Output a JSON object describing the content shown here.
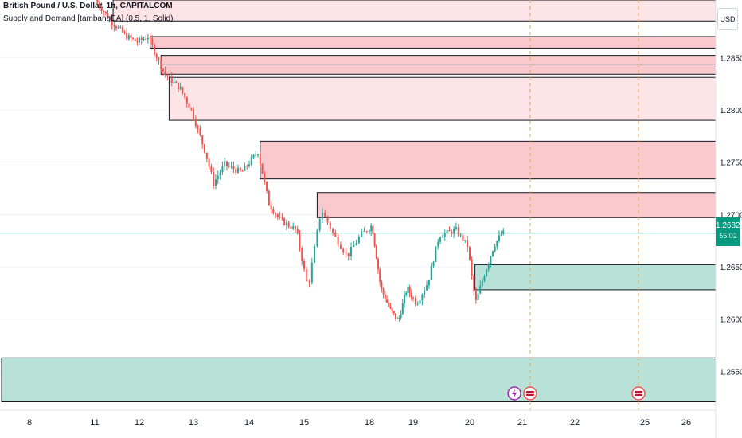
{
  "header": {
    "symbol_line": "British Pound / U.S. Dollar, 1h, CAPITALCOM",
    "indicator_line": "Supply and Demand [tambangEA] (0.5, 1, Solid)",
    "currency_button": "USD"
  },
  "price_tag": {
    "price": "1.26821",
    "countdown": "55:02"
  },
  "colors": {
    "up": "#26a69a",
    "down": "#ef5350",
    "supply_light": "#fde4e6",
    "supply": "#f9c9cd",
    "demand": "#b8e2d8",
    "last_price_line": "#26a69a",
    "session_marker": "#f2a43a",
    "event_marker": "#ef5350",
    "lightning_marker": "#9c27b0"
  },
  "chart_data": {
    "type": "candlestick",
    "title": "British Pound / U.S. Dollar, 1h, CAPITALCOM",
    "x_tick_labels": [
      {
        "label": "8",
        "day": 0
      },
      {
        "label": "11",
        "day": 1.15
      },
      {
        "label": "12",
        "day": 2
      },
      {
        "label": "13",
        "day": 3
      },
      {
        "label": "14",
        "day": 4
      },
      {
        "label": "15",
        "day": 5
      },
      {
        "label": "18",
        "day": 6
      },
      {
        "label": "19",
        "day": 7
      },
      {
        "label": "20",
        "day": 8
      },
      {
        "label": "21",
        "day": 9
      },
      {
        "label": "22",
        "day": 10
      },
      {
        "label": "25",
        "day": 11.1
      },
      {
        "label": "26",
        "day": 11.8
      }
    ],
    "y_ticks": [
      "1.28500",
      "1.28000",
      "1.27500",
      "1.27000",
      "1.26500",
      "1.26000",
      "1.25500"
    ],
    "ylim": [
      1.2513,
      1.2905
    ],
    "last_price": 1.26821,
    "supply_zones": [
      {
        "top": 1.2905,
        "bottom": 1.2885,
        "start_day": 1.5,
        "shade": "light"
      },
      {
        "top": 1.287,
        "bottom": 1.2859,
        "start_day": 2.2,
        "shade": "dark"
      },
      {
        "top": 1.2852,
        "bottom": 1.2843,
        "start_day": 2.4,
        "shade": "dark"
      },
      {
        "top": 1.2843,
        "bottom": 1.2834,
        "start_day": 2.4,
        "shade": "dark"
      },
      {
        "top": 1.2831,
        "bottom": 1.279,
        "start_day": 2.55,
        "shade": "light"
      },
      {
        "top": 1.277,
        "bottom": 1.2734,
        "start_day": 4.2,
        "shade": "dark"
      },
      {
        "top": 1.2721,
        "bottom": 1.2697,
        "start_day": 5.2,
        "shade": "dark"
      }
    ],
    "demand_zones": [
      {
        "top": 1.2652,
        "bottom": 1.2628,
        "start_day": 8.1
      },
      {
        "top": 1.2563,
        "bottom": 1.2521,
        "start_day": -0.5
      }
    ],
    "markers": [
      {
        "type": "lightning",
        "day": 8.85
      },
      {
        "type": "event",
        "day": 9.15
      },
      {
        "type": "event",
        "day": 11.0
      }
    ],
    "session_lines_days": [
      9.15,
      11.0
    ],
    "price_path": [
      [
        1.2,
        1.2905
      ],
      [
        1.5,
        1.2885
      ],
      [
        1.8,
        1.287
      ],
      [
        2.0,
        1.2865
      ],
      [
        2.2,
        1.287
      ],
      [
        2.5,
        1.2835
      ],
      [
        2.8,
        1.282
      ],
      [
        3.0,
        1.28
      ],
      [
        3.25,
        1.276
      ],
      [
        3.4,
        1.273
      ],
      [
        3.6,
        1.2748
      ],
      [
        3.9,
        1.274
      ],
      [
        4.2,
        1.276
      ],
      [
        4.4,
        1.271
      ],
      [
        4.6,
        1.2695
      ],
      [
        4.9,
        1.2685
      ],
      [
        5.1,
        1.263
      ],
      [
        5.3,
        1.2705
      ],
      [
        5.5,
        1.268
      ],
      [
        5.7,
        1.266
      ],
      [
        5.9,
        1.268
      ],
      [
        6.1,
        1.269
      ],
      [
        6.3,
        1.263
      ],
      [
        6.5,
        1.261
      ],
      [
        6.7,
        1.2598
      ],
      [
        6.9,
        1.263
      ],
      [
        7.1,
        1.2615
      ],
      [
        7.3,
        1.2635
      ],
      [
        7.5,
        1.268
      ],
      [
        7.8,
        1.2685
      ],
      [
        8.0,
        1.267
      ],
      [
        8.15,
        1.2615
      ],
      [
        8.3,
        1.264
      ],
      [
        8.5,
        1.267
      ],
      [
        8.65,
        1.26821
      ]
    ]
  }
}
